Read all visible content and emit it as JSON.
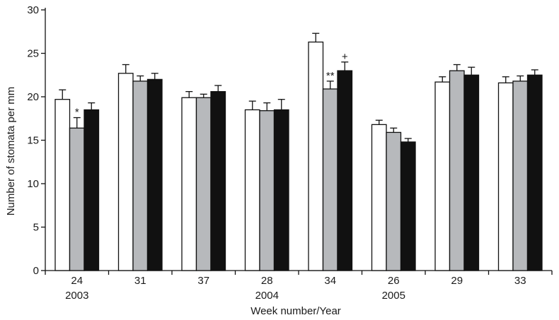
{
  "chart_data": {
    "type": "bar",
    "title": "",
    "xlabel": "Week number/Year",
    "ylabel": "Number of stomata per mm",
    "ylim": [
      0,
      30
    ],
    "yticks": [
      0,
      5,
      10,
      15,
      20,
      25,
      30
    ],
    "categories": [
      "24",
      "31",
      "37",
      "28",
      "34",
      "26",
      "29",
      "33"
    ],
    "year_labels": [
      {
        "label": "2003",
        "category_index": 0
      },
      {
        "label": "2004",
        "category_index": 3
      },
      {
        "label": "2005",
        "category_index": 5
      }
    ],
    "series": [
      {
        "color": "#ffffff",
        "values": [
          19.7,
          22.7,
          19.9,
          18.5,
          26.3,
          16.8,
          21.7,
          21.6
        ],
        "errors": [
          1.1,
          1.0,
          0.7,
          1.0,
          1.0,
          0.5,
          0.6,
          0.7
        ]
      },
      {
        "color": "#b7b9bc",
        "values": [
          16.4,
          21.8,
          19.9,
          18.4,
          20.9,
          15.9,
          23.0,
          21.8
        ],
        "errors": [
          1.2,
          0.6,
          0.4,
          0.9,
          0.9,
          0.5,
          0.7,
          0.6
        ]
      },
      {
        "color": "#111111",
        "values": [
          18.5,
          22.0,
          20.6,
          18.5,
          23.0,
          14.8,
          22.5,
          22.5
        ],
        "errors": [
          0.8,
          0.7,
          0.7,
          1.2,
          1.0,
          0.4,
          0.9,
          0.6
        ]
      }
    ],
    "annotations": [
      {
        "text": "*",
        "category_index": 0,
        "series_index": 1
      },
      {
        "text": "**",
        "category_index": 4,
        "series_index": 1
      },
      {
        "text": "+",
        "category_index": 4,
        "series_index": 2
      }
    ],
    "grid": false,
    "legend": "none"
  }
}
